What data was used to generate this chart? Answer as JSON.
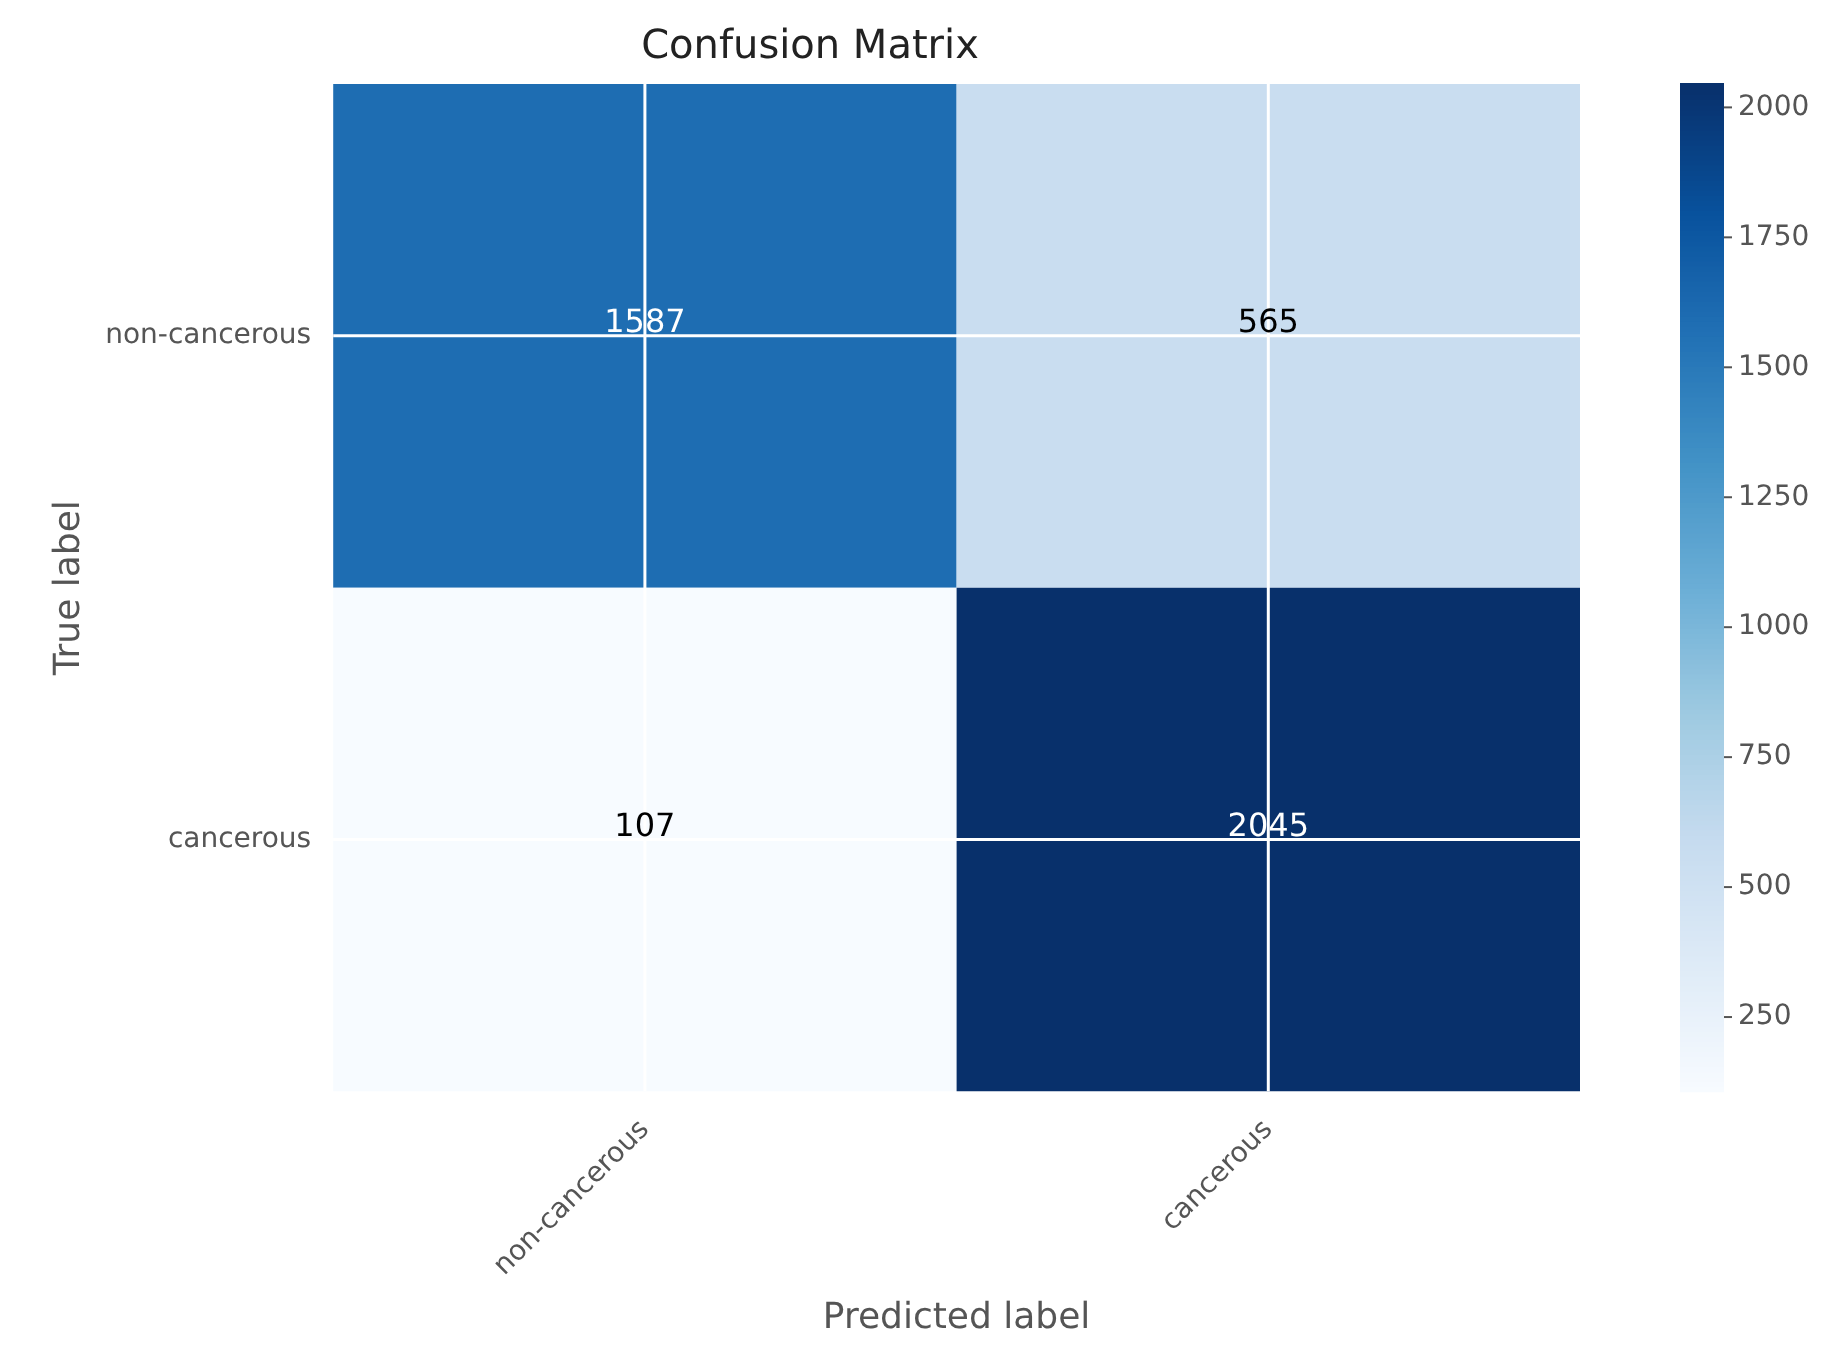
{
  "chart_data": {
    "type": "heatmap",
    "title": "Confusion Matrix",
    "xlabel": "Predicted label",
    "ylabel": "True label",
    "categories": [
      "non-cancerous",
      "cancerous"
    ],
    "y_categories": [
      "non-cancerous",
      "cancerous"
    ],
    "cells": [
      [
        1587,
        565
      ],
      [
        107,
        2045
      ]
    ],
    "clim": [
      107,
      2045
    ],
    "cticks": [
      250,
      500,
      750,
      1000,
      1250,
      1500,
      1750,
      2000
    ],
    "data_labels": true,
    "grid": true
  }
}
